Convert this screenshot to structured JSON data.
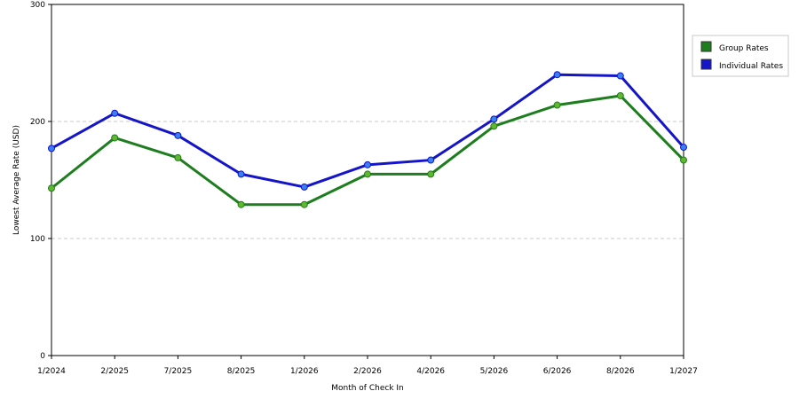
{
  "chart_data": {
    "type": "line",
    "xlabel": "Month of Check In",
    "ylabel": "Lowest Average Rate (USD)",
    "ylim": [
      0,
      300
    ],
    "yticks": [
      0,
      100,
      200,
      300
    ],
    "grid": "horizontal dashed",
    "legend_position": "right",
    "categories": [
      "1/2024",
      "2/2025",
      "7/2025",
      "8/2025",
      "1/2026",
      "2/2026",
      "4/2026",
      "5/2026",
      "6/2026",
      "8/2026",
      "1/2027"
    ],
    "series": [
      {
        "name": "Group Rates",
        "color": "#1e7d1e",
        "marker_color": "#5fb82e",
        "values": [
          143,
          186,
          169,
          129,
          129,
          155,
          155,
          196,
          214,
          222,
          167
        ]
      },
      {
        "name": "Individual Rates",
        "color": "#1414c8",
        "marker_color": "#3a7ff0",
        "values": [
          177,
          207,
          188,
          155,
          144,
          163,
          167,
          202,
          240,
          239,
          178
        ]
      }
    ]
  }
}
